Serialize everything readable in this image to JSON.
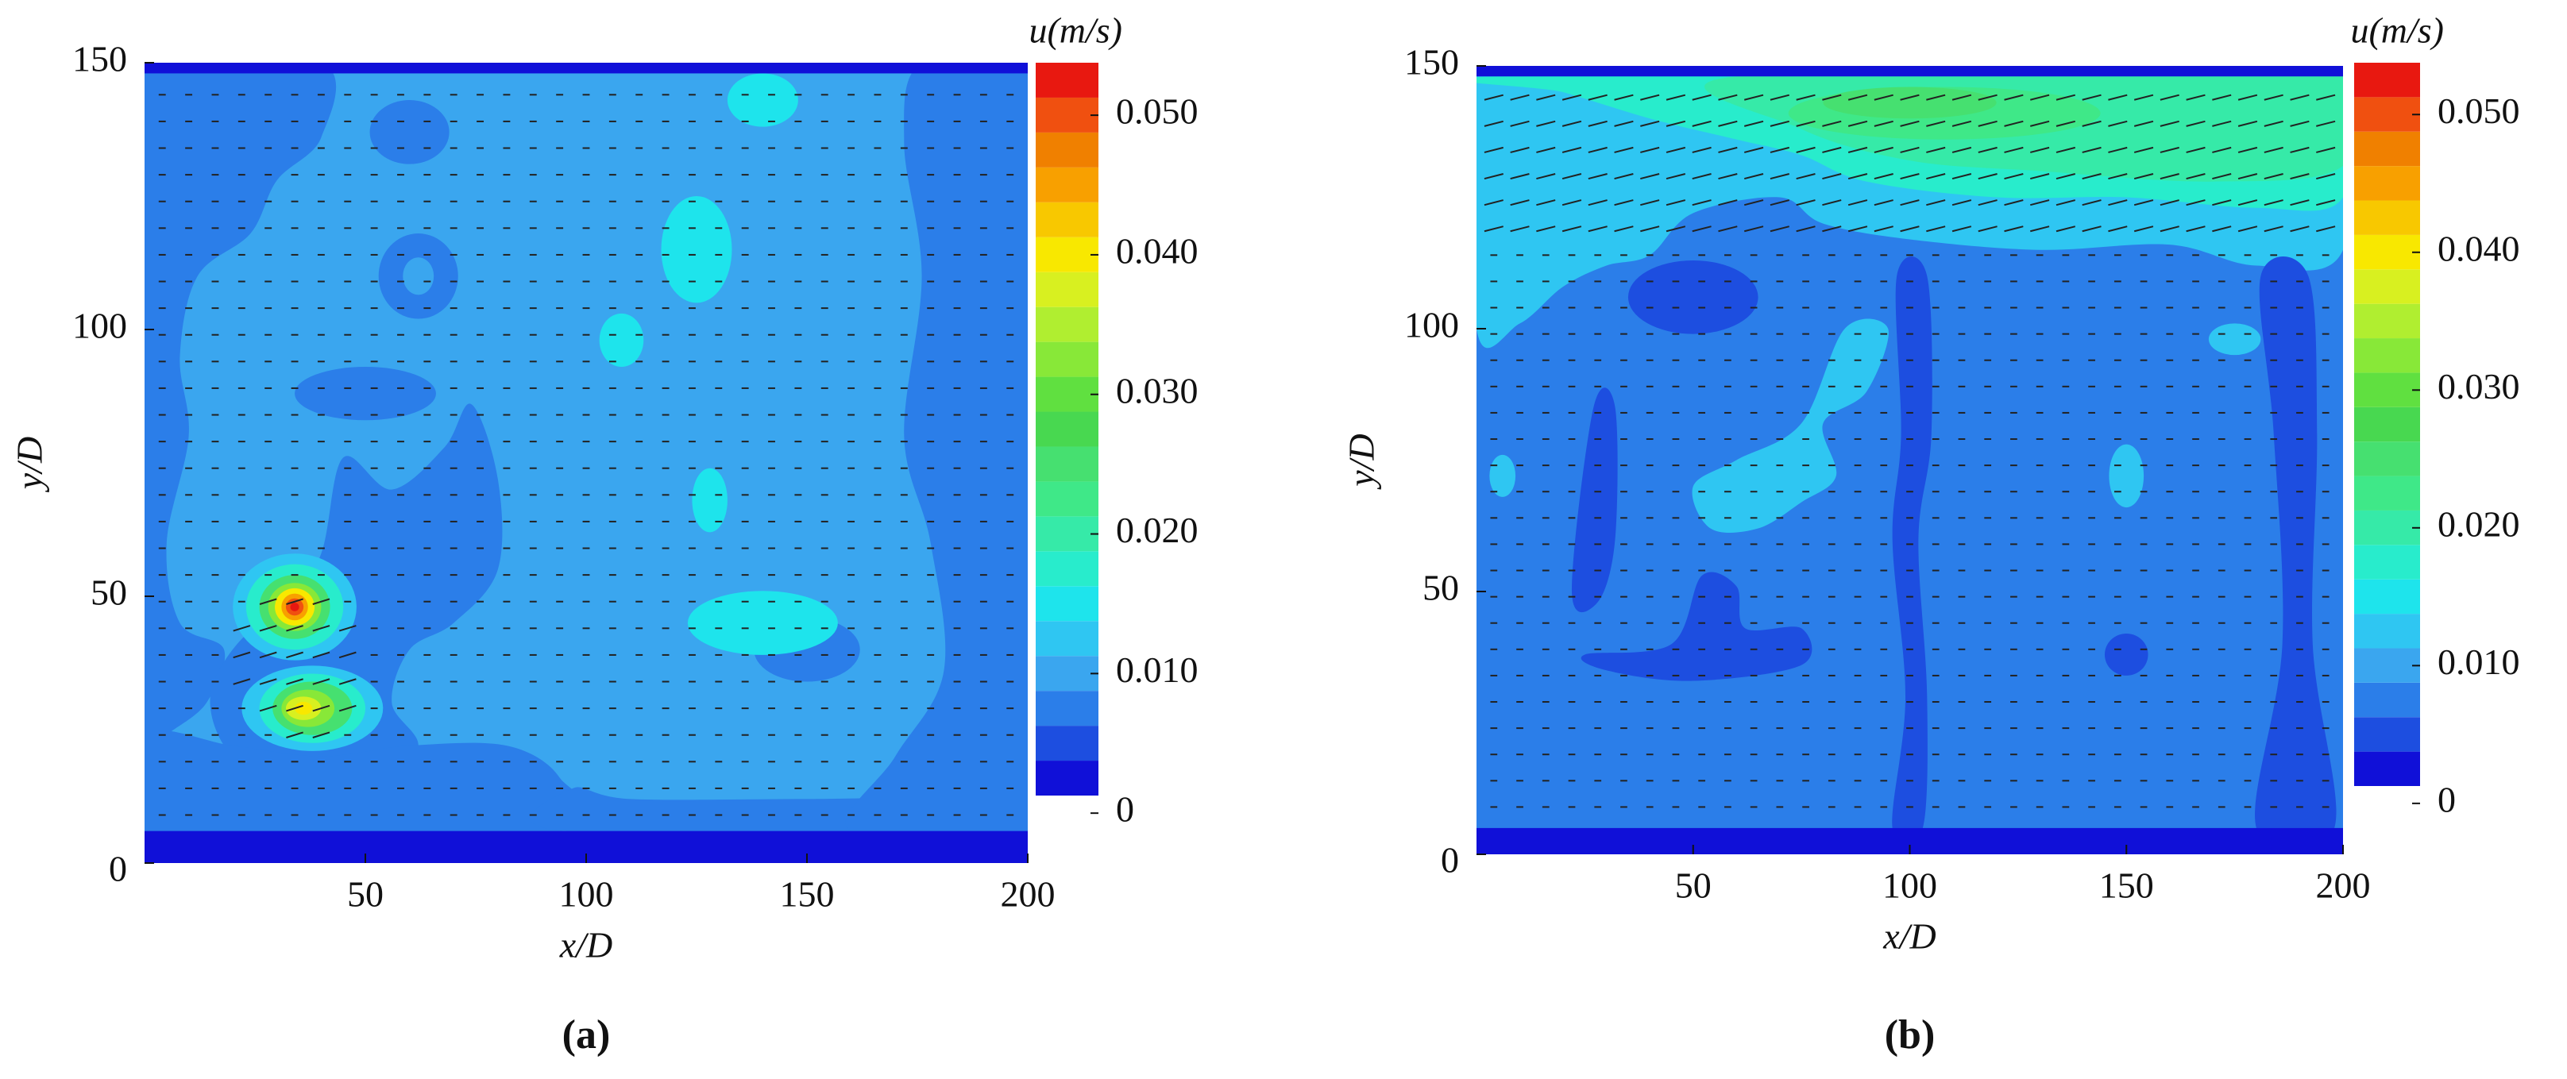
{
  "chart_data": [
    {
      "type": "contour",
      "panel_label": "(a)",
      "xlabel": "x/D",
      "ylabel": "y/D",
      "colorbar_label": "u(m/s)",
      "xlim": [
        0,
        200
      ],
      "xticks": [
        50,
        100,
        150,
        200
      ],
      "ylim": [
        0,
        150
      ],
      "yticks": [
        0,
        50,
        100,
        150
      ],
      "clim": [
        0,
        0.0525
      ],
      "cticks": [
        0,
        {
          "value": 0.01,
          "label": "0.010"
        },
        {
          "value": 0.02,
          "label": "0.020"
        },
        {
          "value": 0.03,
          "label": "0.030"
        },
        {
          "value": 0.04,
          "label": "0.040"
        },
        {
          "value": 0.05,
          "label": "0.050"
        }
      ],
      "levels": [
        0,
        0.0025,
        0.005,
        0.0075,
        0.01,
        0.0125,
        0.015,
        0.0175,
        0.02,
        0.0225,
        0.025,
        0.0275,
        0.03,
        0.0325,
        0.035,
        0.0375,
        0.04,
        0.0425,
        0.045,
        0.0475,
        0.05
      ],
      "colors": [
        "#1010d8",
        "#1d4ee0",
        "#2b7ee9",
        "#3aa6ef",
        "#2fc6f2",
        "#1ee4ec",
        "#28eccc",
        "#36eaa8",
        "#3fe888",
        "#46e070",
        "#48d850",
        "#60e040",
        "#88e838",
        "#b0ee30",
        "#d8f020",
        "#f8e800",
        "#f8c800",
        "#f8a000",
        "#f08000",
        "#f05010",
        "#e81810"
      ]
    },
    {
      "type": "contour",
      "panel_label": "(b)",
      "xlabel": "x/D",
      "ylabel": "y/D",
      "colorbar_label": "u(m/s)",
      "xlim": [
        0,
        200
      ],
      "xticks": [
        50,
        100,
        150,
        200
      ],
      "ylim": [
        0,
        150
      ],
      "yticks": [
        0,
        50,
        100,
        150
      ],
      "clim": [
        0,
        0.0525
      ],
      "cticks": [
        0,
        {
          "value": 0.01,
          "label": "0.010"
        },
        {
          "value": 0.02,
          "label": "0.020"
        },
        {
          "value": 0.03,
          "label": "0.030"
        },
        {
          "value": 0.04,
          "label": "0.040"
        },
        {
          "value": 0.05,
          "label": "0.050"
        }
      ],
      "levels": [
        0,
        0.0025,
        0.005,
        0.0075,
        0.01,
        0.0125,
        0.015,
        0.0175,
        0.02,
        0.0225,
        0.025,
        0.0275,
        0.03,
        0.0325,
        0.035,
        0.0375,
        0.04,
        0.0425,
        0.045,
        0.0475,
        0.05
      ],
      "colors": [
        "#1010d8",
        "#1d4ee0",
        "#2b7ee9",
        "#3aa6ef",
        "#2fc6f2",
        "#1ee4ec",
        "#28eccc",
        "#36eaa8",
        "#3fe888",
        "#46e070",
        "#48d850",
        "#60e040",
        "#88e838",
        "#b0ee30",
        "#d8f020",
        "#f8e800",
        "#f8c800",
        "#f8a000",
        "#f08000",
        "#f05010",
        "#e81810"
      ]
    }
  ]
}
